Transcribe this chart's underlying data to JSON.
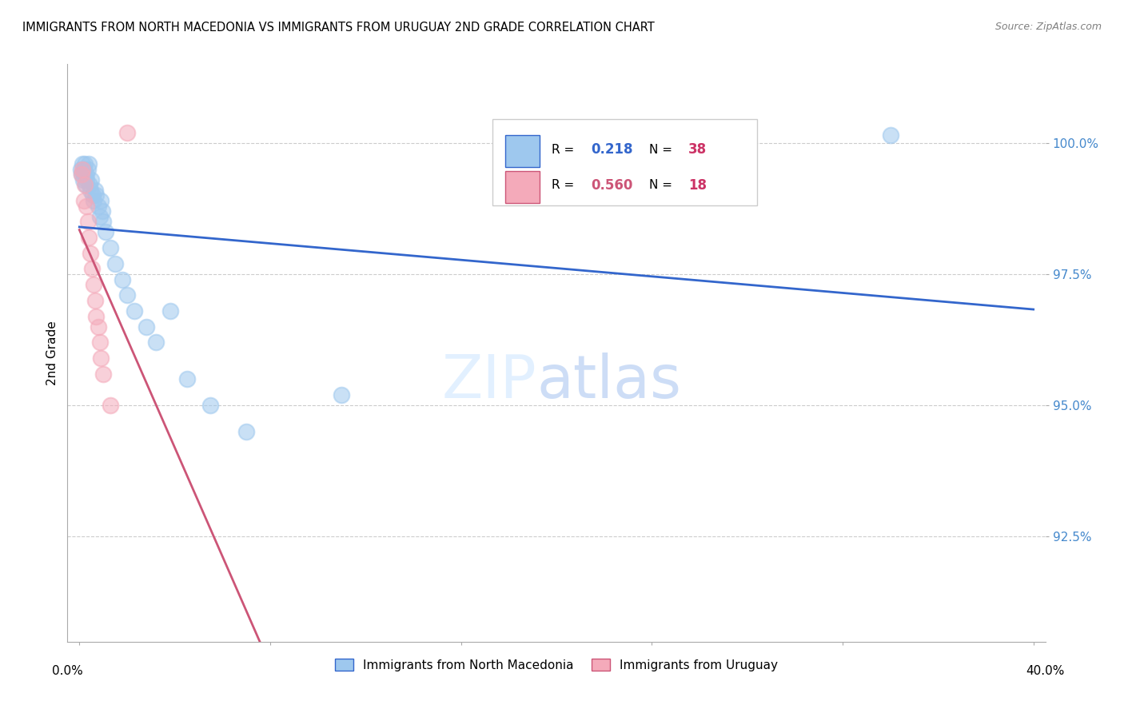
{
  "title": "IMMIGRANTS FROM NORTH MACEDONIA VS IMMIGRANTS FROM URUGUAY 2ND GRADE CORRELATION CHART",
  "source": "Source: ZipAtlas.com",
  "ylabel": "2nd Grade",
  "xlim": [
    -0.5,
    40.5
  ],
  "ylim": [
    90.5,
    101.5
  ],
  "yticks": [
    92.5,
    95.0,
    97.5,
    100.0
  ],
  "ytick_labels": [
    "92.5%",
    "95.0%",
    "97.5%",
    "100.0%"
  ],
  "blue_color": "#9EC8EE",
  "pink_color": "#F4AABA",
  "blue_line_color": "#3366CC",
  "pink_line_color": "#CC5577",
  "legend_blue_val": "0.218",
  "legend_blue_n": "38",
  "legend_pink_val": "0.560",
  "legend_pink_n": "18",
  "legend_n_color": "#CC3366",
  "series1_label": "Immigrants from North Macedonia",
  "series2_label": "Immigrants from Uruguay",
  "blue_x": [
    0.05,
    0.1,
    0.12,
    0.15,
    0.18,
    0.2,
    0.22,
    0.25,
    0.28,
    0.3,
    0.35,
    0.4,
    0.42,
    0.45,
    0.5,
    0.55,
    0.6,
    0.65,
    0.7,
    0.8,
    0.85,
    0.9,
    0.95,
    1.0,
    1.1,
    1.3,
    1.5,
    1.8,
    2.0,
    2.3,
    2.8,
    3.2,
    3.8,
    4.5,
    5.5,
    7.0,
    11.0,
    34.0
  ],
  "blue_y": [
    99.5,
    99.4,
    99.6,
    99.3,
    99.5,
    99.4,
    99.6,
    99.2,
    99.3,
    99.4,
    99.5,
    99.6,
    99.2,
    99.1,
    99.3,
    99.0,
    98.9,
    99.1,
    99.0,
    98.8,
    98.6,
    98.9,
    98.7,
    98.5,
    98.3,
    98.0,
    97.7,
    97.4,
    97.1,
    96.8,
    96.5,
    96.2,
    96.8,
    95.5,
    95.0,
    94.5,
    95.2,
    100.15
  ],
  "pink_x": [
    0.08,
    0.12,
    0.18,
    0.22,
    0.28,
    0.35,
    0.4,
    0.45,
    0.52,
    0.6,
    0.65,
    0.7,
    0.78,
    0.85,
    0.9,
    1.0,
    1.3,
    2.0
  ],
  "pink_y": [
    99.4,
    99.5,
    98.9,
    99.2,
    98.8,
    98.5,
    98.2,
    97.9,
    97.6,
    97.3,
    97.0,
    96.7,
    96.5,
    96.2,
    95.9,
    95.6,
    95.0,
    100.2
  ],
  "background_color": "#ffffff",
  "grid_color": "#cccccc",
  "tick_color": "#4488cc"
}
